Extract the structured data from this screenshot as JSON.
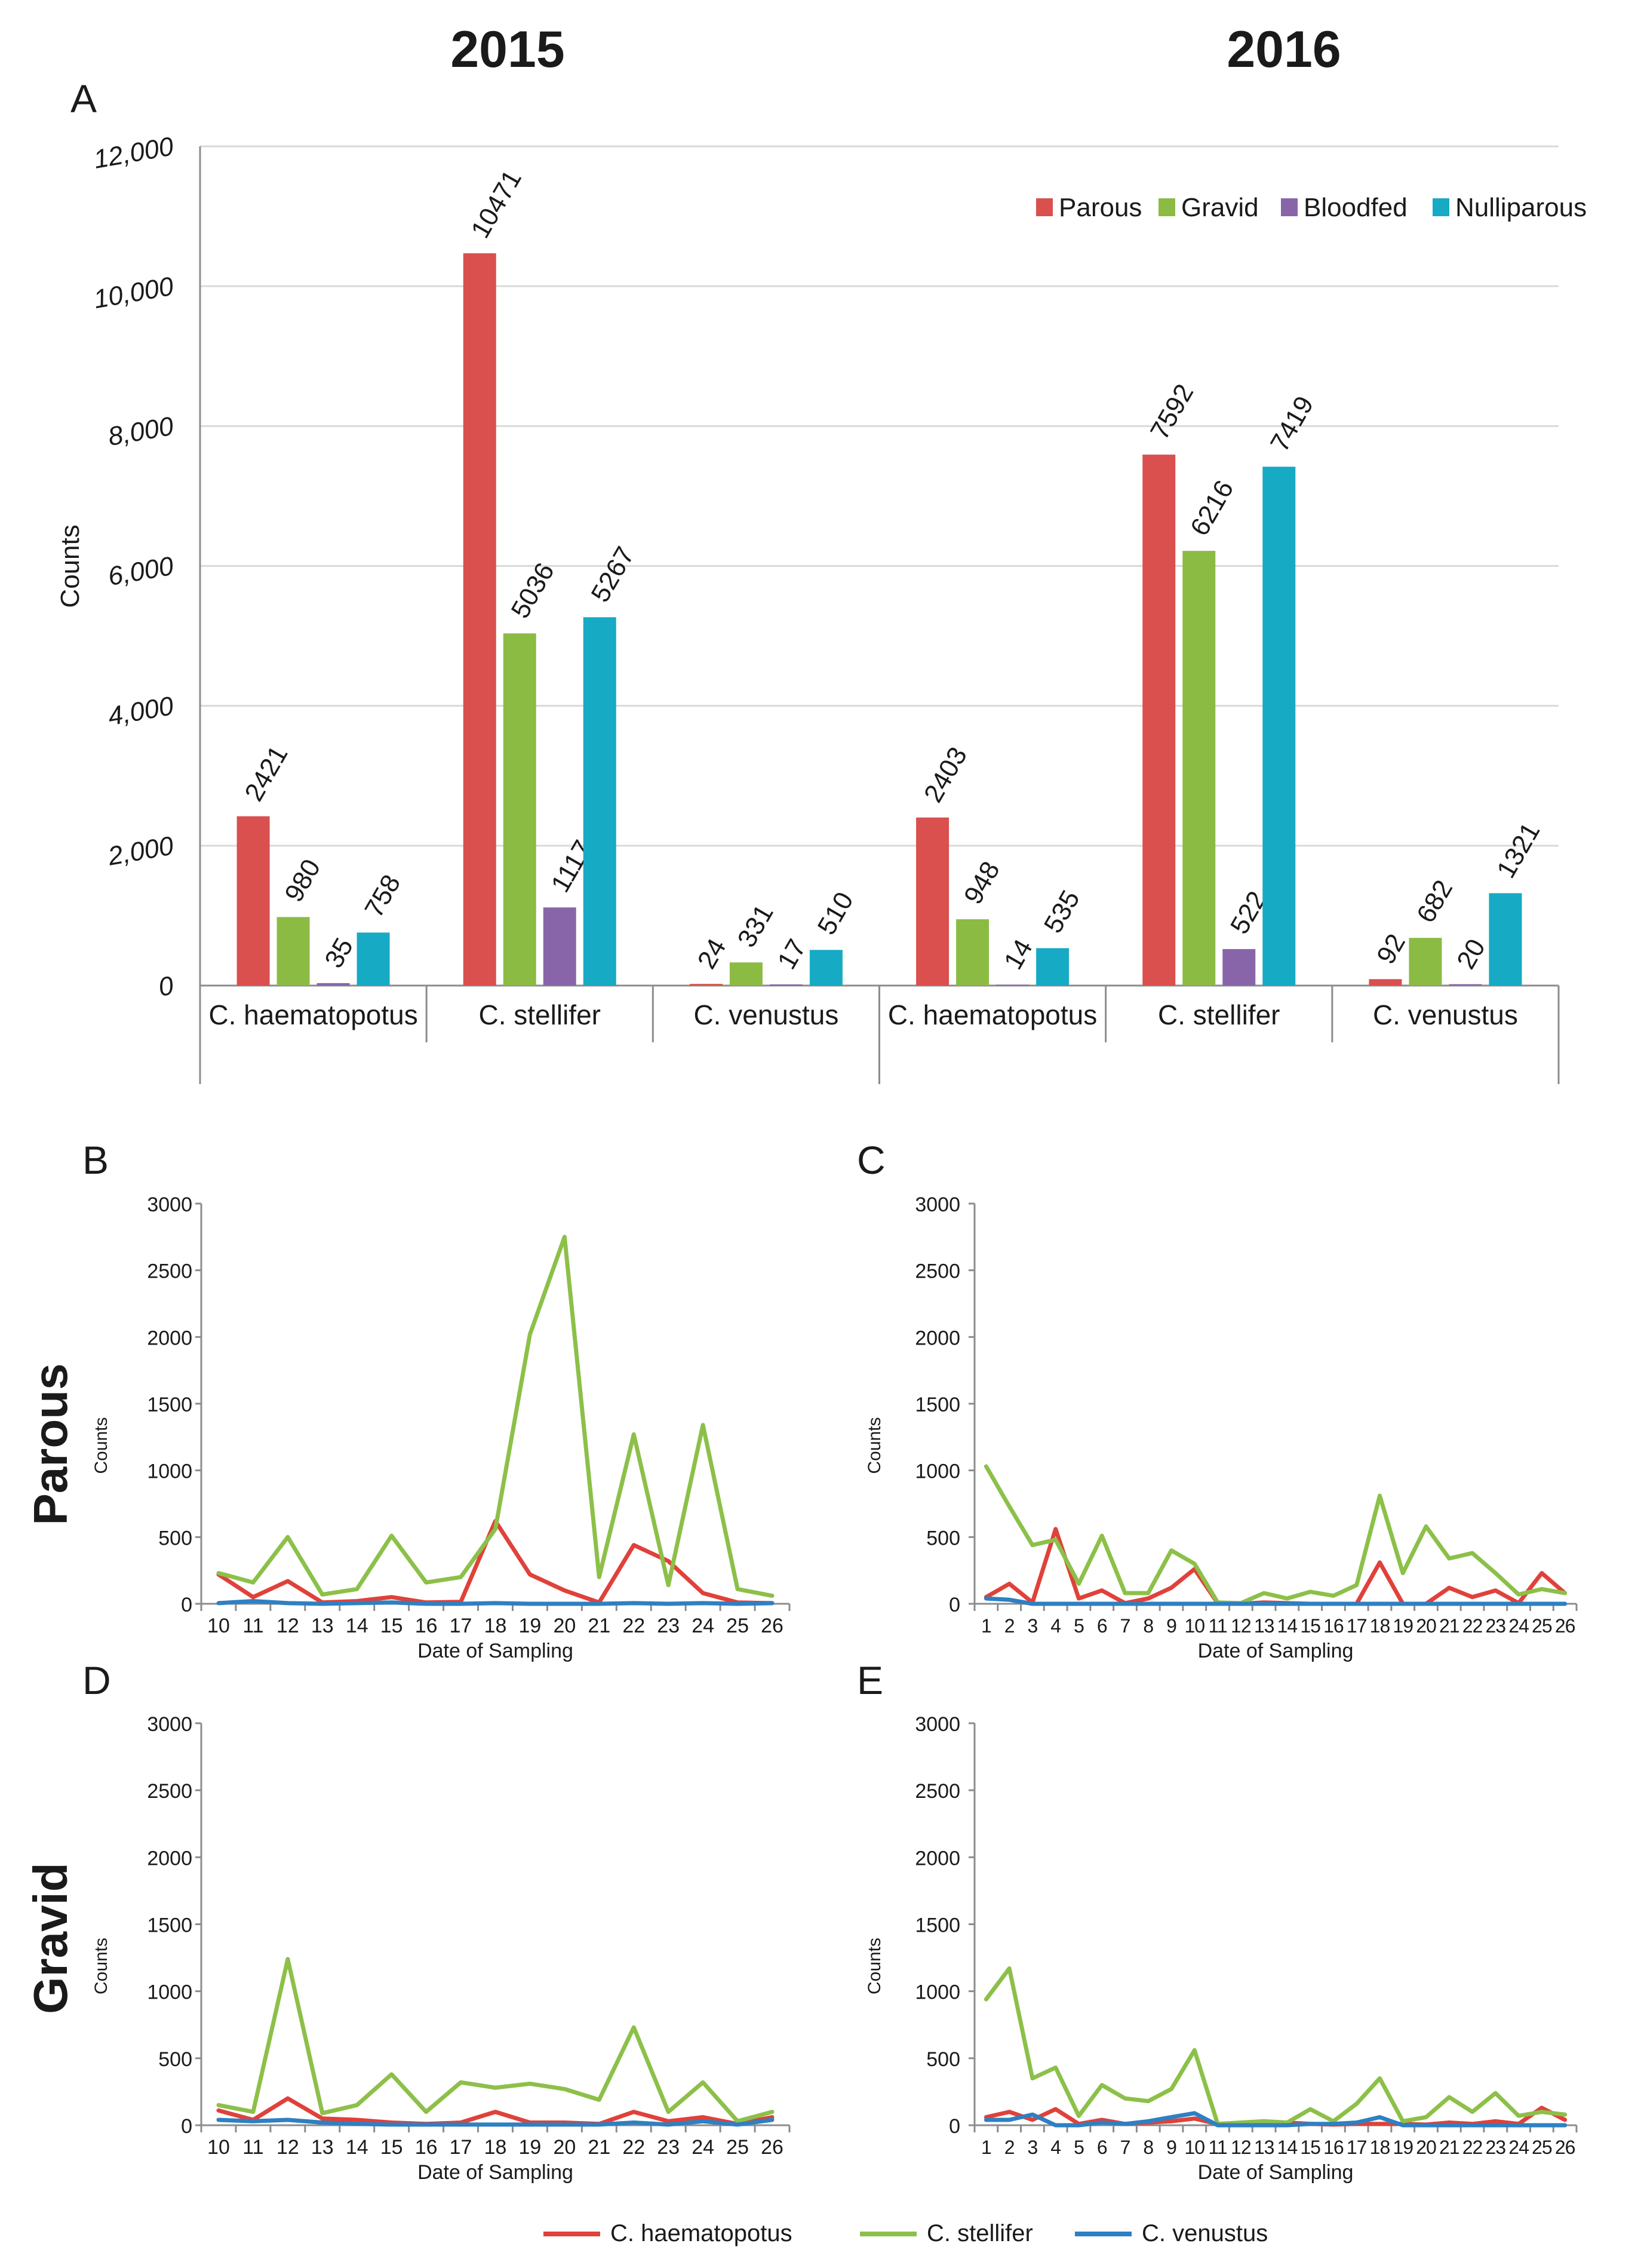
{
  "header": {
    "year_left": "2015",
    "year_right": "2016",
    "row_label_top": "Parous",
    "row_label_bottom": "Gravid"
  },
  "colors": {
    "parous": "#d9504e",
    "gravid": "#8cbb44",
    "bloodfed": "#8865a9",
    "nulliparous": "#17aac4",
    "haematopotus": "#e0413a",
    "stellifer": "#8cc049",
    "venustus": "#2e80c2",
    "axis": "#8c8c8c",
    "grid": "#d9d9d9",
    "text": "#1a1a1a"
  },
  "chart_data": [
    {
      "panel": "A",
      "type": "bar",
      "ylabel": "Counts",
      "ylim": [
        0,
        12000
      ],
      "yticks": [
        "0",
        "2,000",
        "4,000",
        "6,000",
        "8,000",
        "10,000",
        "12,000"
      ],
      "ytick_values": [
        0,
        2000,
        4000,
        6000,
        8000,
        10000,
        12000
      ],
      "categories": [
        "C. haematopotus",
        "C. stellifer",
        "C. venustus",
        "C. haematopotus",
        "C. stellifer",
        "C. venustus"
      ],
      "groups": [
        "2015",
        "2016"
      ],
      "legend": "top-right",
      "series": [
        {
          "name": "Parous",
          "color_key": "parous",
          "values": [
            2421,
            10471,
            24,
            2403,
            7592,
            92
          ]
        },
        {
          "name": "Gravid",
          "color_key": "gravid",
          "values": [
            980,
            5036,
            331,
            948,
            6216,
            682
          ]
        },
        {
          "name": "Bloodfed",
          "color_key": "bloodfed",
          "values": [
            35,
            1117,
            17,
            14,
            522,
            20
          ]
        },
        {
          "name": "Nulliparous",
          "color_key": "nulliparous",
          "values": [
            758,
            5267,
            510,
            535,
            7419,
            1321
          ]
        }
      ]
    },
    {
      "panel": "B",
      "type": "line",
      "xlabel": "Date of Sampling",
      "ylabel": "Counts",
      "ylim": [
        0,
        3000
      ],
      "yticks": [
        0,
        500,
        1000,
        1500,
        2000,
        2500,
        3000
      ],
      "x": [
        10,
        11,
        12,
        13,
        14,
        15,
        16,
        17,
        18,
        19,
        20,
        21,
        22,
        23,
        24,
        25,
        26
      ],
      "series": [
        {
          "name": "C. haematopotus",
          "color_key": "haematopotus",
          "values": [
            220,
            50,
            170,
            10,
            20,
            50,
            10,
            15,
            620,
            220,
            100,
            10,
            440,
            320,
            80,
            10,
            5
          ]
        },
        {
          "name": "C. stellifer",
          "color_key": "stellifer",
          "values": [
            230,
            160,
            500,
            70,
            110,
            510,
            160,
            200,
            560,
            2020,
            2750,
            200,
            1270,
            140,
            1340,
            110,
            60
          ]
        },
        {
          "name": "C. venustus",
          "color_key": "venustus",
          "values": [
            5,
            20,
            5,
            0,
            5,
            10,
            0,
            0,
            5,
            0,
            0,
            0,
            5,
            0,
            5,
            0,
            5
          ]
        }
      ]
    },
    {
      "panel": "C",
      "type": "line",
      "xlabel": "Date of Sampling",
      "ylabel": "Counts",
      "ylim": [
        0,
        3000
      ],
      "yticks": [
        0,
        500,
        1000,
        1500,
        2000,
        2500,
        3000
      ],
      "x": [
        1,
        2,
        3,
        4,
        5,
        6,
        7,
        8,
        9,
        10,
        11,
        12,
        13,
        14,
        15,
        16,
        17,
        18,
        19,
        20,
        21,
        22,
        23,
        24,
        25,
        26
      ],
      "series": [
        {
          "name": "C. haematopotus",
          "color_key": "haematopotus",
          "values": [
            50,
            150,
            10,
            560,
            40,
            100,
            5,
            40,
            120,
            260,
            5,
            0,
            10,
            5,
            0,
            0,
            0,
            310,
            0,
            0,
            120,
            50,
            100,
            5,
            230,
            80
          ]
        },
        {
          "name": "C. stellifer",
          "color_key": "stellifer",
          "values": [
            1030,
            730,
            440,
            480,
            150,
            510,
            80,
            80,
            400,
            300,
            10,
            5,
            80,
            40,
            90,
            60,
            140,
            810,
            230,
            580,
            340,
            380,
            230,
            70,
            110,
            80
          ]
        },
        {
          "name": "C. venustus",
          "color_key": "venustus",
          "values": [
            40,
            30,
            0,
            0,
            0,
            0,
            0,
            0,
            0,
            0,
            0,
            0,
            0,
            0,
            0,
            0,
            0,
            0,
            0,
            0,
            0,
            0,
            0,
            0,
            0,
            0
          ]
        }
      ]
    },
    {
      "panel": "D",
      "type": "line",
      "xlabel": "Date of Sampling",
      "ylabel": "Counts",
      "ylim": [
        0,
        3000
      ],
      "yticks": [
        0,
        500,
        1000,
        1500,
        2000,
        2500,
        3000
      ],
      "x": [
        10,
        11,
        12,
        13,
        14,
        15,
        16,
        17,
        18,
        19,
        20,
        21,
        22,
        23,
        24,
        25,
        26
      ],
      "series": [
        {
          "name": "C. haematopotus",
          "color_key": "haematopotus",
          "values": [
            110,
            40,
            200,
            50,
            40,
            20,
            10,
            20,
            100,
            20,
            20,
            10,
            100,
            30,
            60,
            10,
            60
          ]
        },
        {
          "name": "C. stellifer",
          "color_key": "stellifer",
          "values": [
            150,
            100,
            1240,
            90,
            150,
            380,
            100,
            320,
            280,
            310,
            270,
            190,
            730,
            100,
            320,
            30,
            100
          ]
        },
        {
          "name": "C. venustus",
          "color_key": "venustus",
          "values": [
            40,
            30,
            40,
            20,
            10,
            5,
            5,
            5,
            5,
            5,
            5,
            5,
            20,
            5,
            30,
            5,
            40
          ]
        }
      ]
    },
    {
      "panel": "E",
      "type": "line",
      "xlabel": "Date of Sampling",
      "ylabel": "Counts",
      "ylim": [
        0,
        3000
      ],
      "yticks": [
        0,
        500,
        1000,
        1500,
        2000,
        2500,
        3000
      ],
      "x": [
        1,
        2,
        3,
        4,
        5,
        6,
        7,
        8,
        9,
        10,
        11,
        12,
        13,
        14,
        15,
        16,
        17,
        18,
        19,
        20,
        21,
        22,
        23,
        24,
        25,
        26
      ],
      "series": [
        {
          "name": "C. haematopotus",
          "color_key": "haematopotus",
          "values": [
            60,
            100,
            40,
            120,
            10,
            40,
            10,
            20,
            30,
            50,
            10,
            10,
            10,
            20,
            10,
            5,
            10,
            10,
            10,
            5,
            20,
            10,
            30,
            10,
            130,
            40
          ]
        },
        {
          "name": "C. stellifer",
          "color_key": "stellifer",
          "values": [
            940,
            1170,
            350,
            430,
            70,
            300,
            200,
            180,
            270,
            560,
            10,
            20,
            30,
            20,
            120,
            30,
            160,
            350,
            30,
            60,
            210,
            100,
            240,
            70,
            100,
            80
          ]
        },
        {
          "name": "C. venustus",
          "color_key": "venustus",
          "values": [
            40,
            40,
            80,
            0,
            0,
            20,
            10,
            30,
            60,
            90,
            0,
            0,
            0,
            0,
            10,
            10,
            20,
            60,
            0,
            0,
            0,
            0,
            0,
            0,
            0,
            0
          ]
        }
      ]
    }
  ],
  "legend": {
    "items": [
      "C. haematopotus",
      "C. stellifer",
      "C. venustus"
    ],
    "color_keys": [
      "haematopotus",
      "stellifer",
      "venustus"
    ]
  }
}
